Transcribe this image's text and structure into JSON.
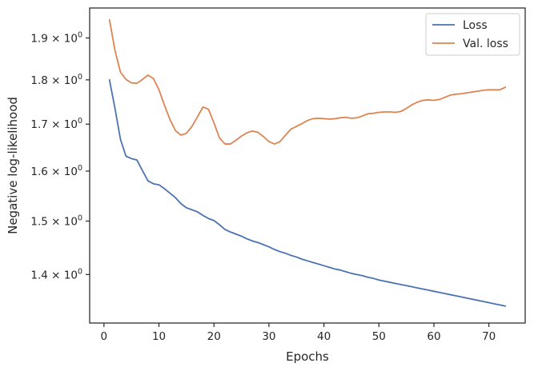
{
  "chart_data": {
    "type": "line",
    "title": "",
    "xlabel": "Epochs",
    "ylabel": "Negative log-likelihood",
    "xlim": [
      -2.6,
      76.6
    ],
    "ylim": [
      1.315,
      1.975
    ],
    "yscale": "log",
    "grid": false,
    "legend_position": "top-right",
    "x_ticks": [
      0,
      10,
      20,
      30,
      40,
      50,
      60,
      70
    ],
    "x_tick_labels": [
      "0",
      "10",
      "20",
      "30",
      "40",
      "50",
      "60",
      "70"
    ],
    "y_ticks": [
      1.4,
      1.5,
      1.6,
      1.7,
      1.8,
      1.9
    ],
    "y_tick_labels": [
      {
        "base": "1.4 × 10",
        "exp": "0"
      },
      {
        "base": "1.5 × 10",
        "exp": "0"
      },
      {
        "base": "1.6 × 10",
        "exp": "0"
      },
      {
        "base": "1.7 × 10",
        "exp": "0"
      },
      {
        "base": "1.8 × 10",
        "exp": "0"
      },
      {
        "base": "1.9 × 10",
        "exp": "0"
      }
    ],
    "x": [
      1,
      2,
      3,
      4,
      5,
      6,
      7,
      8,
      9,
      10,
      11,
      12,
      13,
      14,
      15,
      16,
      17,
      18,
      19,
      20,
      21,
      22,
      23,
      24,
      25,
      26,
      27,
      28,
      29,
      30,
      31,
      32,
      33,
      34,
      35,
      36,
      37,
      38,
      39,
      40,
      41,
      42,
      43,
      44,
      45,
      46,
      47,
      48,
      49,
      50,
      51,
      52,
      53,
      54,
      55,
      56,
      57,
      58,
      59,
      60,
      61,
      62,
      63,
      64,
      65,
      66,
      67,
      68,
      69,
      70,
      71,
      72,
      73
    ],
    "series": [
      {
        "name": "Loss",
        "color": "#4c72b0",
        "values": [
          1.8,
          1.735,
          1.667,
          1.631,
          1.626,
          1.623,
          1.601,
          1.58,
          1.574,
          1.572,
          1.564,
          1.555,
          1.546,
          1.534,
          1.526,
          1.522,
          1.518,
          1.511,
          1.505,
          1.501,
          1.493,
          1.484,
          1.479,
          1.475,
          1.471,
          1.466,
          1.462,
          1.459,
          1.455,
          1.451,
          1.446,
          1.442,
          1.439,
          1.435,
          1.432,
          1.428,
          1.425,
          1.422,
          1.419,
          1.416,
          1.413,
          1.41,
          1.408,
          1.405,
          1.402,
          1.4,
          1.398,
          1.395,
          1.393,
          1.39,
          1.388,
          1.386,
          1.384,
          1.382,
          1.38,
          1.378,
          1.376,
          1.374,
          1.372,
          1.37,
          1.368,
          1.366,
          1.364,
          1.362,
          1.36,
          1.358,
          1.356,
          1.354,
          1.352,
          1.35,
          1.348,
          1.346,
          1.344
        ]
      },
      {
        "name": "Val. loss",
        "color": "#dd8452",
        "values": [
          1.945,
          1.87,
          1.818,
          1.801,
          1.793,
          1.792,
          1.801,
          1.811,
          1.803,
          1.777,
          1.742,
          1.71,
          1.686,
          1.676,
          1.68,
          1.695,
          1.716,
          1.738,
          1.733,
          1.703,
          1.67,
          1.657,
          1.657,
          1.665,
          1.674,
          1.681,
          1.685,
          1.682,
          1.673,
          1.662,
          1.657,
          1.662,
          1.676,
          1.689,
          1.695,
          1.701,
          1.708,
          1.712,
          1.713,
          1.712,
          1.711,
          1.712,
          1.714,
          1.715,
          1.713,
          1.714,
          1.718,
          1.723,
          1.724,
          1.726,
          1.727,
          1.727,
          1.726,
          1.728,
          1.735,
          1.743,
          1.749,
          1.753,
          1.754,
          1.753,
          1.755,
          1.76,
          1.765,
          1.767,
          1.768,
          1.77,
          1.772,
          1.774,
          1.776,
          1.777,
          1.777,
          1.777,
          1.783
        ]
      }
    ]
  }
}
